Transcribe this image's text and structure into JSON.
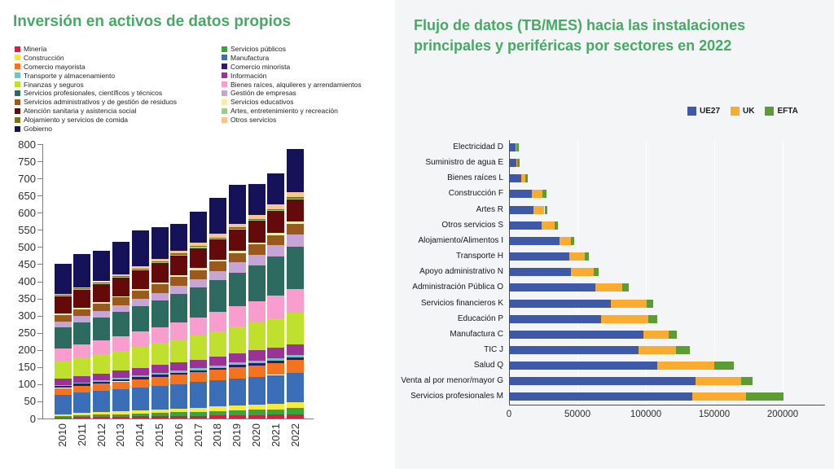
{
  "page": {
    "background": "#ffffff",
    "right_panel_background": "#f4f5f6",
    "accent_green": "#47a964"
  },
  "left_chart": {
    "title": "Inversión en activos de datos propios",
    "legend_col1": [
      {
        "label": "Minería",
        "color": "#e01a41"
      },
      {
        "label": "Construcción",
        "color": "#f7e93d"
      },
      {
        "label": "Comercio mayorista",
        "color": "#f3731f"
      },
      {
        "label": "Transporte y almacenamiento",
        "color": "#6dc7be"
      },
      {
        "label": "Finanzas y seguros",
        "color": "#bfe02c"
      },
      {
        "label": "Servicios profesionales, científicos y técnicos",
        "color": "#2d6b60"
      },
      {
        "label": "Servicios administrativos y de gestión de residuos",
        "color": "#9a5a1d"
      },
      {
        "label": "Atención sanitaria y asistencia social",
        "color": "#640a0a"
      },
      {
        "label": "Alojamiento y servicios de comida",
        "color": "#7c7416"
      },
      {
        "label": "Gobierno",
        "color": "#15125a"
      }
    ],
    "legend_col2": [
      {
        "label": "Servicios públicos",
        "color": "#3aa33a"
      },
      {
        "label": "Manufactura",
        "color": "#3a6fb7"
      },
      {
        "label": "Comercio minorista",
        "color": "#2f1a69"
      },
      {
        "label": "Información",
        "color": "#9c3296"
      },
      {
        "label": "Bienes raíces, alquileres y arrendamientos",
        "color": "#f99cce"
      },
      {
        "label": "Gestión de empresas",
        "color": "#c6a4d6"
      },
      {
        "label": "Servicios educativos",
        "color": "#f2f0a6"
      },
      {
        "label": "Artes, entretenimiento y recreación",
        "color": "#97cf85"
      },
      {
        "label": "Otros servicios",
        "color": "#f9c58f"
      }
    ]
  },
  "right_chart": {
    "title": "Flujo de datos (TB/MES) hacia las instalaciones principales y periféricas por sectores en 2022",
    "legend": [
      {
        "label": "UE27",
        "color": "#3d59a8"
      },
      {
        "label": "UK",
        "color": "#fbab30"
      },
      {
        "label": "EFTA",
        "color": "#5d9b35"
      }
    ]
  },
  "chart_data": [
    {
      "id": "inversion-activos-datos",
      "type": "bar",
      "variant": "stacked-vertical",
      "title": "Inversión en activos de datos propios",
      "categories": [
        "2010",
        "2011",
        "2012",
        "2013",
        "2014",
        "2015",
        "2016",
        "2017",
        "2018",
        "2019",
        "2020",
        "2021",
        "2022"
      ],
      "ylim": [
        0,
        800
      ],
      "ytick_step": 50,
      "grid": false,
      "totals": [
        450,
        480,
        490,
        515,
        548,
        558,
        568,
        602,
        643,
        681,
        683,
        714,
        785
      ],
      "series": [
        {
          "name": "Minería",
          "color": "#e01a41",
          "values": [
            3,
            4,
            5,
            5,
            6,
            7,
            7,
            8,
            9,
            10,
            10,
            11,
            12
          ]
        },
        {
          "name": "Servicios públicos",
          "color": "#3aa33a",
          "values": [
            5,
            6,
            7,
            8,
            9,
            10,
            11,
            12,
            13,
            14,
            15,
            16,
            18
          ]
        },
        {
          "name": "Construcción",
          "color": "#f7e93d",
          "values": [
            5,
            6,
            7,
            8,
            9,
            10,
            11,
            12,
            13,
            14,
            15,
            16,
            17
          ]
        },
        {
          "name": "Manufactura",
          "color": "#3a6fb7",
          "values": [
            56,
            59,
            61,
            64,
            66,
            69,
            71,
            74,
            76,
            79,
            81,
            84,
            86
          ]
        },
        {
          "name": "Comercio mayorista",
          "color": "#f3731f",
          "values": [
            20,
            21,
            22,
            23,
            25,
            26,
            28,
            29,
            31,
            32,
            34,
            35,
            37
          ]
        },
        {
          "name": "Comercio minorista",
          "color": "#2f1a69",
          "values": [
            5,
            5,
            5,
            5,
            6,
            6,
            6,
            6,
            6,
            7,
            7,
            7,
            7
          ]
        },
        {
          "name": "Transporte y almacenamiento",
          "color": "#6dc7be",
          "values": [
            4,
            4,
            4,
            5,
            5,
            5,
            6,
            6,
            6,
            7,
            7,
            7,
            8
          ]
        },
        {
          "name": "Información",
          "color": "#9c3296",
          "values": [
            18,
            19,
            20,
            21,
            22,
            23,
            24,
            25,
            27,
            28,
            30,
            31,
            32
          ]
        },
        {
          "name": "Finanzas y seguros",
          "color": "#bfe02c",
          "values": [
            52,
            54,
            56,
            59,
            61,
            64,
            67,
            70,
            74,
            78,
            82,
            86,
            91
          ]
        },
        {
          "name": "Bienes raíces, alquileres y arrendamientos",
          "color": "#f99cce",
          "values": [
            36,
            38,
            40,
            42,
            44,
            46,
            49,
            52,
            55,
            58,
            61,
            65,
            70
          ]
        },
        {
          "name": "Servicios profesionales, científicos y técnicos",
          "color": "#2d6b60",
          "values": [
            62,
            65,
            68,
            71,
            75,
            79,
            83,
            88,
            93,
            99,
            105,
            114,
            124
          ]
        },
        {
          "name": "Gestión de empresas",
          "color": "#c6a4d6",
          "values": [
            16,
            17,
            18,
            19,
            20,
            21,
            23,
            25,
            27,
            29,
            31,
            33,
            35
          ]
        },
        {
          "name": "Servicios administrativos y de gestión de residuos",
          "color": "#9a5a1d",
          "values": [
            20,
            21,
            22,
            23,
            24,
            25,
            26,
            26,
            27,
            28,
            29,
            30,
            31
          ]
        },
        {
          "name": "Servicios educativos",
          "color": "#f2f0a6",
          "values": [
            4,
            4,
            4,
            4,
            5,
            5,
            5,
            5,
            5,
            6,
            6,
            6,
            6
          ]
        },
        {
          "name": "Atención sanitaria y asistencia social",
          "color": "#640a0a",
          "values": [
            51,
            52,
            53,
            54,
            56,
            57,
            58,
            59,
            60,
            62,
            63,
            64,
            65
          ]
        },
        {
          "name": "Artes, entretenimiento y recreación",
          "color": "#97cf85",
          "values": [
            2,
            2,
            2,
            2,
            2,
            3,
            3,
            3,
            3,
            3,
            3,
            3,
            3
          ]
        },
        {
          "name": "Alojamiento y servicios de comida",
          "color": "#7c7416",
          "values": [
            2,
            2,
            2,
            2,
            2,
            2,
            3,
            3,
            3,
            3,
            2,
            3,
            3
          ]
        },
        {
          "name": "Otros servicios",
          "color": "#f9c58f",
          "values": [
            3,
            4,
            4,
            5,
            6,
            7,
            8,
            9,
            10,
            11,
            12,
            13,
            14
          ]
        },
        {
          "name": "Gobierno",
          "color": "#15125a",
          "values": [
            86,
            97,
            90,
            95,
            105,
            93,
            79,
            90,
            105,
            113,
            90,
            90,
            126
          ]
        }
      ]
    },
    {
      "id": "flujo-datos-2022",
      "type": "bar",
      "variant": "stacked-horizontal",
      "title": "Flujo de datos (TB/MES) hacia las instalaciones principales y periféricas por sectores en 2022",
      "categories": [
        "Electricidad D",
        "Suministro de agua E",
        "Bienes raíces L",
        "Construcción F",
        "Artes R",
        "Otros servicios S",
        "Alojamiento/Alimentos I",
        "Transporte H",
        "Apoyo administrativo N",
        "Administración Pública O",
        "Servicios financieros K",
        "Educación P",
        "Manufactura C",
        "TIC J",
        "Salud Q",
        "Venta al por menor/mayor G",
        "Servicios profesionales M"
      ],
      "xlim": [
        0,
        200000
      ],
      "xticks": [
        0,
        50000,
        100000,
        150000,
        200000
      ],
      "grid": true,
      "legend_position": "top-right",
      "series": [
        {
          "name": "UE27",
          "color": "#3d59a8",
          "values": [
            4000,
            4700,
            8500,
            16200,
            17200,
            23100,
            36100,
            43300,
            44800,
            62400,
            73900,
            66800,
            97600,
            94100,
            107900,
            135500,
            133200
          ]
        },
        {
          "name": "UK",
          "color": "#fbab30",
          "values": [
            800,
            800,
            2600,
            7900,
            8100,
            9700,
            8300,
            11500,
            16300,
            19800,
            26100,
            34200,
            18600,
            27100,
            41500,
            33600,
            39500
          ]
        },
        {
          "name": "EFTA",
          "color": "#5d9b35",
          "values": [
            1500,
            1500,
            1800,
            2400,
            2000,
            2400,
            2400,
            3000,
            3600,
            4900,
            4500,
            6900,
            5900,
            10100,
            14400,
            8500,
            27100
          ]
        }
      ]
    }
  ]
}
